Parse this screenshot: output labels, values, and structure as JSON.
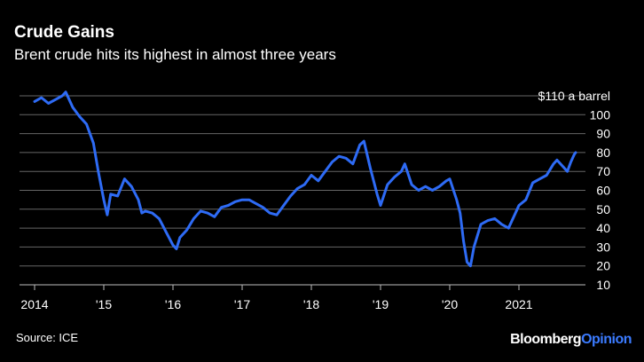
{
  "header": {
    "title": "Crude Gains",
    "subtitle": "Brent crude hits its highest in almost three years"
  },
  "footer": {
    "source": "Source: ICE",
    "brand_main": "Bloomberg",
    "brand_accent": "Opinion"
  },
  "colors": {
    "background": "#000000",
    "line": "#2e6bf5",
    "grid": "#666666",
    "accent": "#3b7bff"
  },
  "chart_data": {
    "type": "line",
    "title": "Crude Gains",
    "subtitle": "Brent crude hits its highest in almost three years",
    "ylabel": "",
    "xlabel": "",
    "y_top_label": "$110 a barrel",
    "ylim": [
      10,
      110
    ],
    "yticks": [
      10,
      20,
      30,
      40,
      50,
      60,
      70,
      80,
      90,
      100,
      110
    ],
    "ytick_labels": [
      "10",
      "20",
      "30",
      "40",
      "50",
      "60",
      "70",
      "80",
      "90",
      "100",
      "$110 a barrel"
    ],
    "xlim": [
      2014.0,
      2021.85
    ],
    "xticks": [
      2014,
      2015,
      2016,
      2017,
      2018,
      2019,
      2020,
      2021
    ],
    "xtick_labels": [
      "2014",
      "'15",
      "'16",
      "'17",
      "'18",
      "'19",
      "'20",
      "2021"
    ],
    "grid": "horizontal",
    "x": [
      2014.0,
      2014.1,
      2014.2,
      2014.3,
      2014.4,
      2014.45,
      2014.55,
      2014.65,
      2014.75,
      2014.85,
      2014.92,
      2015.0,
      2015.05,
      2015.1,
      2015.2,
      2015.3,
      2015.4,
      2015.5,
      2015.55,
      2015.6,
      2015.7,
      2015.8,
      2015.9,
      2016.0,
      2016.05,
      2016.1,
      2016.2,
      2016.3,
      2016.4,
      2016.5,
      2016.6,
      2016.7,
      2016.8,
      2016.9,
      2017.0,
      2017.1,
      2017.2,
      2017.3,
      2017.4,
      2017.5,
      2017.6,
      2017.7,
      2017.8,
      2017.9,
      2018.0,
      2018.1,
      2018.2,
      2018.3,
      2018.4,
      2018.5,
      2018.6,
      2018.7,
      2018.76,
      2018.85,
      2018.95,
      2019.0,
      2019.1,
      2019.2,
      2019.3,
      2019.35,
      2019.45,
      2019.55,
      2019.65,
      2019.75,
      2019.85,
      2019.95,
      2020.0,
      2020.1,
      2020.15,
      2020.2,
      2020.25,
      2020.3,
      2020.35,
      2020.45,
      2020.55,
      2020.65,
      2020.75,
      2020.85,
      2020.95,
      2021.0,
      2021.1,
      2021.2,
      2021.3,
      2021.4,
      2021.5,
      2021.55,
      2021.65,
      2021.7,
      2021.75,
      2021.8,
      2021.82
    ],
    "series": [
      {
        "values": [
          107,
          109,
          106,
          108,
          110,
          112,
          104,
          99,
          95,
          85,
          70,
          55,
          47,
          58,
          57,
          66,
          62,
          55,
          48,
          49,
          48,
          45,
          38,
          31,
          29,
          35,
          39,
          45,
          49,
          48,
          46,
          51,
          52,
          54,
          55,
          55,
          53,
          51,
          48,
          47,
          52,
          57,
          61,
          63,
          68,
          65,
          70,
          75,
          78,
          77,
          74,
          84,
          86,
          72,
          58,
          52,
          63,
          67,
          70,
          74,
          63,
          60,
          62,
          60,
          62,
          65,
          66,
          55,
          48,
          33,
          22,
          20,
          30,
          42,
          44,
          45,
          42,
          40,
          48,
          52,
          55,
          64,
          66,
          68,
          74,
          76,
          72,
          70,
          75,
          79,
          80
        ]
      }
    ]
  }
}
